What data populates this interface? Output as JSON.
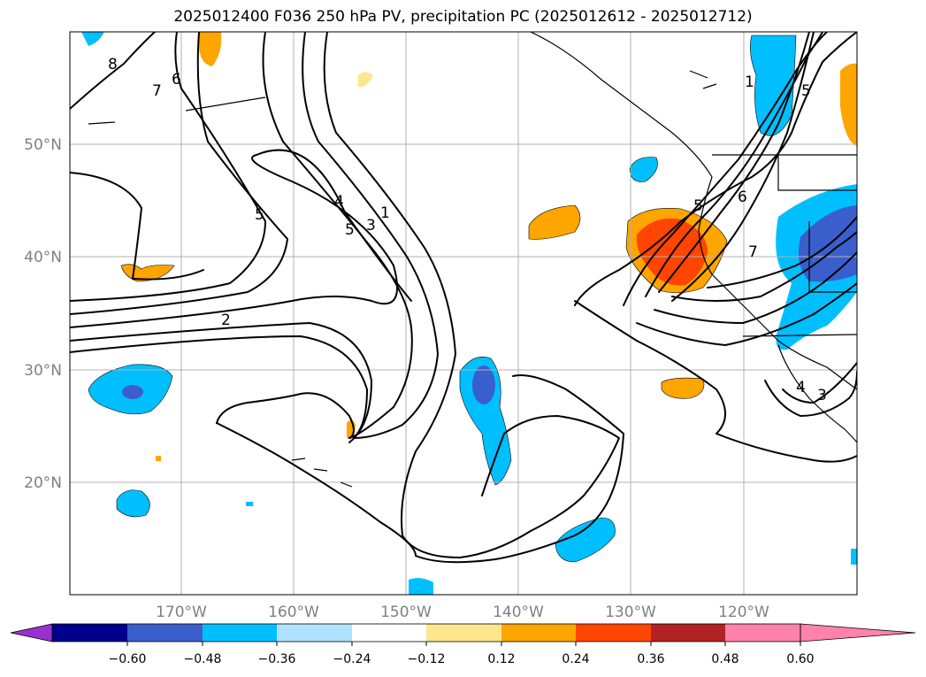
{
  "title": "2025012400 F036 250 hPa PV, precipitation PC (2025012612 - 2025012712)",
  "latitude_labels": [
    "50°N",
    "40°N",
    "30°N",
    "20°N"
  ],
  "longitude_labels": [
    "170°W",
    "160°W",
    "150°W",
    "140°W",
    "130°W",
    "120°W"
  ],
  "colorbar": {
    "tick_labels": [
      "−0.60",
      "−0.48",
      "−0.36",
      "−0.24",
      "−0.12",
      "0.12",
      "0.24",
      "0.36",
      "0.48",
      "0.60"
    ],
    "colors": [
      "#9932cc",
      "#00008b",
      "#3a5fcd",
      "#00bfff",
      "#b0e2ff",
      "#ffffff",
      "#ffe68c",
      "#ffa500",
      "#ff4500",
      "#b22222",
      "#ff82ab"
    ]
  },
  "contour_labels": [
    "8",
    "7",
    "6",
    "5",
    "4",
    "5",
    "3",
    "1",
    "2",
    "5",
    "6",
    "7",
    "1",
    "5",
    "4",
    "3"
  ],
  "colors": {
    "land_border": "#000000",
    "grid": "#b0b0b0",
    "label": "#808080"
  }
}
